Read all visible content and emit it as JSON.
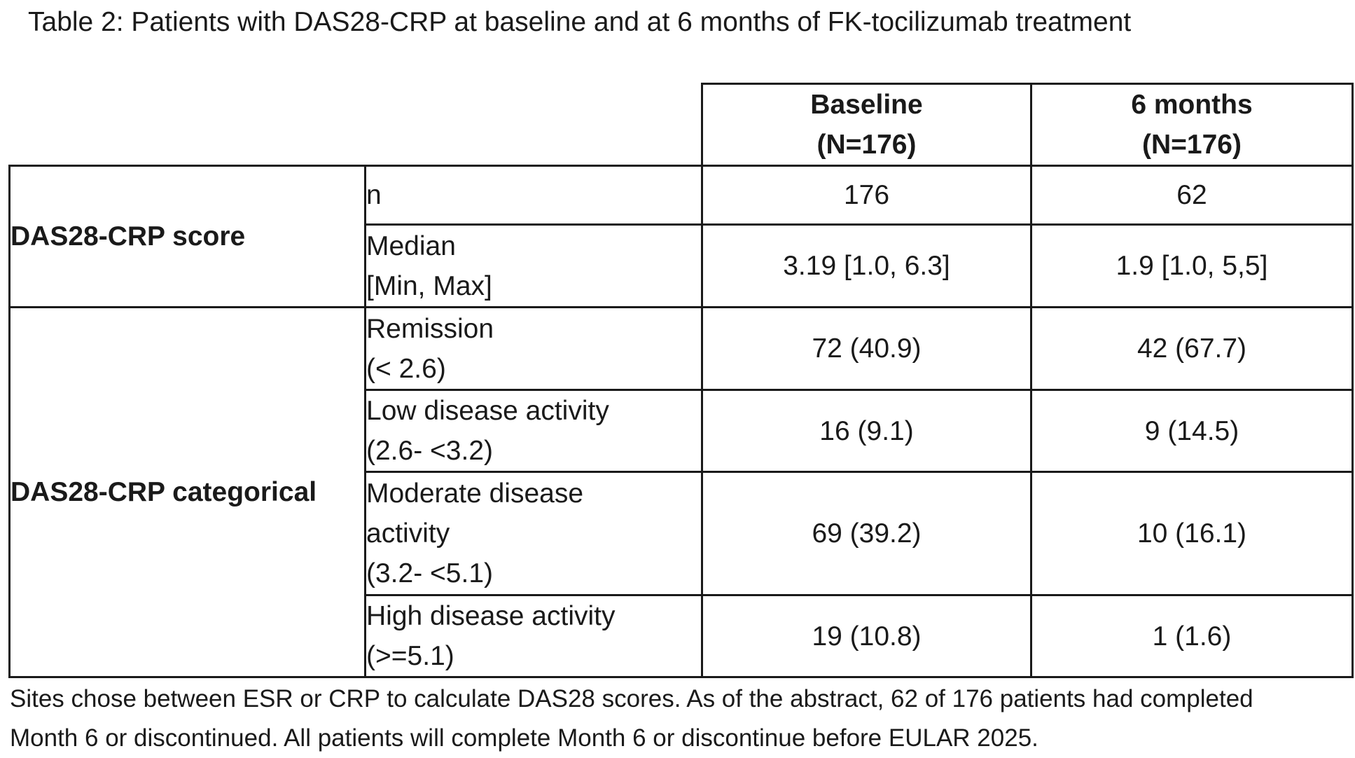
{
  "title": "Table 2: Patients with DAS28-CRP at baseline and at 6 months of FK-tocilizumab treatment",
  "columns": [
    {
      "line1": "Baseline",
      "line2": "(N=176)"
    },
    {
      "line1": "6 months",
      "line2": "(N=176)"
    }
  ],
  "groups": {
    "score": "DAS28-CRP score",
    "categorical": "DAS28-CRP categorical"
  },
  "rows": [
    {
      "label": [
        "n"
      ],
      "baseline": "176",
      "month6": "62"
    },
    {
      "label": [
        "Median",
        "[Min, Max]"
      ],
      "baseline": "3.19 [1.0, 6.3]",
      "month6": "1.9 [1.0, 5,5]"
    },
    {
      "label": [
        "Remission",
        "(< 2.6)"
      ],
      "baseline": "72 (40.9)",
      "month6": "42 (67.7)"
    },
    {
      "label": [
        "Low disease activity",
        "(2.6- <3.2)"
      ],
      "baseline": "16 (9.1)",
      "month6": "9 (14.5)"
    },
    {
      "label": [
        "Moderate disease",
        "activity",
        "(3.2- <5.1)"
      ],
      "baseline": "69 (39.2)",
      "month6": "10 (16.1)"
    },
    {
      "label": [
        "High disease activity",
        "(>=5.1)"
      ],
      "baseline": "19 (10.8)",
      "month6": "1 (1.6)"
    }
  ],
  "footnote": {
    "line1": "Sites chose between ESR or CRP to calculate DAS28 scores. As of the abstract, 62 of 176 patients had completed",
    "line2": "Month 6 or discontinued. All patients will complete Month 6 or discontinue before EULAR 2025."
  }
}
